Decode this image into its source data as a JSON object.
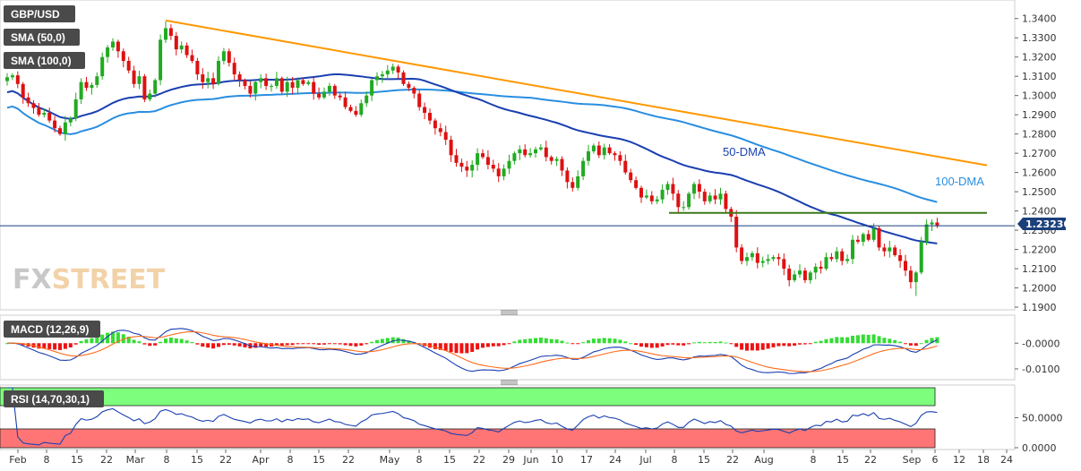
{
  "chart_data": {
    "type": "candlestick",
    "symbol": "GBP/USD",
    "indicator_labels": {
      "sma50": "SMA (50,0)",
      "sma100": "SMA (100,0)",
      "macd": "MACD (12,26,9)",
      "rsi": "RSI (14,70,30,1)"
    },
    "annotations": {
      "dma50": "50-DMA",
      "dma100": "100-DMA",
      "last_price": "1.23230",
      "watermark_fx": "FX",
      "watermark_street": "STREET"
    },
    "colors": {
      "bull": "#22aa22",
      "bear": "#dd1111",
      "sma50": "#1a3fb0",
      "sma100": "#2a8ee0",
      "trend": "#ff9800",
      "support": "#3c7a1a",
      "last": "#1a3f7a",
      "macd_line": "#1a3fb0",
      "signal_line": "#ff6b1a",
      "rsi_line": "#1a3fb0",
      "rsi_high": "#7dff7d",
      "rsi_low": "#ff7575"
    },
    "price_axis": {
      "min": 1.19,
      "max": 1.345,
      "ticks": [
        "1.1900",
        "1.2000",
        "1.2100",
        "1.2200",
        "1.2300",
        "1.2400",
        "1.2500",
        "1.2600",
        "1.2700",
        "1.2800",
        "1.2900",
        "1.3000",
        "1.3100",
        "1.3200",
        "1.3300",
        "1.3400"
      ]
    },
    "macd_axis": {
      "min": -0.0135,
      "max": 0.0095,
      "ticks": [
        "-0.0000",
        "-0.0100"
      ]
    },
    "rsi_axis": {
      "min": 0,
      "max": 100,
      "ticks": [
        "50.0000",
        "0.0000"
      ],
      "overbought": 70,
      "oversold": 30
    },
    "x_axis": {
      "labels": [
        "Feb",
        "8",
        "15",
        "22",
        "Mar",
        "8",
        "15",
        "22",
        "Apr",
        "8",
        "15",
        "22",
        "May",
        "8",
        "15",
        "22",
        "29",
        "Jun",
        "10",
        "17",
        "24",
        "Jul",
        "8",
        "15",
        "22",
        "Aug",
        "8",
        "15",
        "22",
        "Sep",
        "6",
        "12",
        "18",
        "24"
      ]
    },
    "closes": [
      1.3095,
      1.3105,
      1.306,
      1.299,
      1.296,
      1.2935,
      1.29,
      1.291,
      1.287,
      1.283,
      1.28,
      1.286,
      1.288,
      1.298,
      1.307,
      1.304,
      1.3055,
      1.31,
      1.32,
      1.325,
      1.328,
      1.323,
      1.318,
      1.313,
      1.306,
      1.31,
      1.298,
      1.301,
      1.308,
      1.329,
      1.335,
      1.331,
      1.324,
      1.326,
      1.321,
      1.318,
      1.311,
      1.307,
      1.309,
      1.306,
      1.318,
      1.323,
      1.317,
      1.311,
      1.308,
      1.305,
      1.301,
      1.307,
      1.309,
      1.305,
      1.305,
      1.309,
      1.302,
      1.307,
      1.304,
      1.308,
      1.306,
      1.307,
      1.301,
      1.299,
      1.302,
      1.305,
      1.3,
      1.299,
      1.294,
      1.292,
      1.29,
      1.296,
      1.3,
      1.308,
      1.31,
      1.311,
      1.313,
      1.315,
      1.312,
      1.306,
      1.304,
      1.301,
      1.294,
      1.291,
      1.287,
      1.283,
      1.281,
      1.277,
      1.269,
      1.265,
      1.263,
      1.261,
      1.264,
      1.27,
      1.268,
      1.264,
      1.262,
      1.258,
      1.262,
      1.266,
      1.27,
      1.272,
      1.269,
      1.27,
      1.272,
      1.273,
      1.268,
      1.266,
      1.267,
      1.261,
      1.255,
      1.252,
      1.258,
      1.266,
      1.271,
      1.274,
      1.269,
      1.273,
      1.27,
      1.269,
      1.266,
      1.26,
      1.256,
      1.252,
      1.247,
      1.248,
      1.245,
      1.246,
      1.251,
      1.254,
      1.249,
      1.242,
      1.242,
      1.249,
      1.254,
      1.25,
      1.245,
      1.248,
      1.246,
      1.249,
      1.241,
      1.237,
      1.221,
      1.214,
      1.216,
      1.218,
      1.213,
      1.214,
      1.215,
      1.216,
      1.215,
      1.21,
      1.204,
      1.207,
      1.209,
      1.204,
      1.208,
      1.211,
      1.21,
      1.216,
      1.215,
      1.219,
      1.214,
      1.215,
      1.225,
      1.224,
      1.228,
      1.225,
      1.231,
      1.221,
      1.219,
      1.221,
      1.217,
      1.214,
      1.209,
      1.203,
      1.208,
      1.224,
      1.233,
      1.234,
      1.2323
    ]
  }
}
